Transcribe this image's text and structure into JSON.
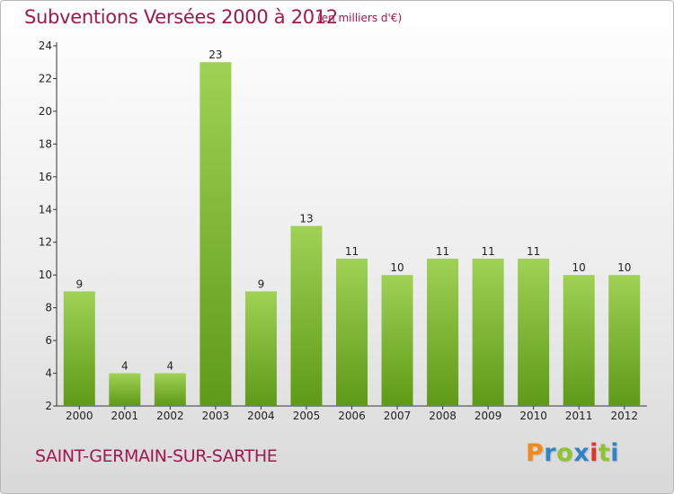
{
  "header": {
    "title": "Subventions Versées 2000 à 2012",
    "subtitle": "(en milliers d'€)"
  },
  "footer": {
    "commune": "SAINT-GERMAIN-SUR-SARTHE",
    "logo": "Proxiti"
  },
  "colors": {
    "bar_light": "#9fd155",
    "bar_dark": "#5e9a17",
    "title": "#a0184e"
  },
  "chart_data": {
    "type": "bar",
    "title": "Subventions Versées 2000 à 2012",
    "subtitle": "(en milliers d'€)",
    "categories": [
      "2000",
      "2001",
      "2002",
      "2003",
      "2004",
      "2005",
      "2006",
      "2007",
      "2008",
      "2009",
      "2010",
      "2011",
      "2012"
    ],
    "values": [
      9,
      4,
      4,
      23,
      9,
      13,
      11,
      10,
      11,
      11,
      11,
      10,
      10
    ],
    "ylim": [
      2,
      24
    ],
    "yticks": [
      2,
      4,
      6,
      8,
      10,
      12,
      14,
      16,
      18,
      20,
      22,
      24
    ],
    "grid": false
  }
}
